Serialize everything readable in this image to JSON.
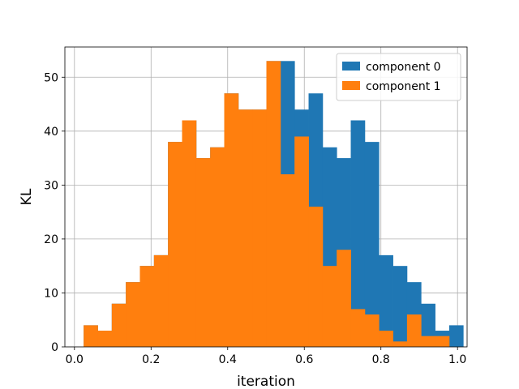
{
  "chart_data": {
    "type": "bar",
    "subtype": "histogram",
    "xlabel": "iteration",
    "ylabel": "KL",
    "xlim": [
      -0.025,
      1.025
    ],
    "ylim": [
      0,
      55.6
    ],
    "xticks": [
      0.0,
      0.2,
      0.4,
      0.6,
      0.8,
      1.0
    ],
    "xtick_labels": [
      "0.0",
      "0.2",
      "0.4",
      "0.6",
      "0.8",
      "1.0"
    ],
    "yticks": [
      0,
      10,
      20,
      30,
      40,
      50
    ],
    "ytick_labels": [
      "0",
      "10",
      "20",
      "30",
      "40",
      "50"
    ],
    "grid": true,
    "legend_position": "top-right",
    "bin_start": 0.024,
    "bin_width": 0.0367,
    "series": [
      {
        "name": "component 0",
        "color": "#1f77b4",
        "values": [
          4,
          3,
          8,
          12,
          15,
          17,
          38,
          42,
          35,
          37,
          47,
          44,
          44,
          53,
          53,
          44,
          47,
          37,
          35,
          42,
          38,
          17,
          15,
          12,
          8,
          3,
          4
        ]
      },
      {
        "name": "component 1",
        "color": "#ff7f0e",
        "values": [
          4,
          3,
          8,
          12,
          15,
          17,
          38,
          42,
          35,
          37,
          47,
          44,
          44,
          53,
          32,
          39,
          26,
          15,
          18,
          7,
          6,
          3,
          1,
          6,
          2,
          2,
          0
        ]
      }
    ]
  }
}
